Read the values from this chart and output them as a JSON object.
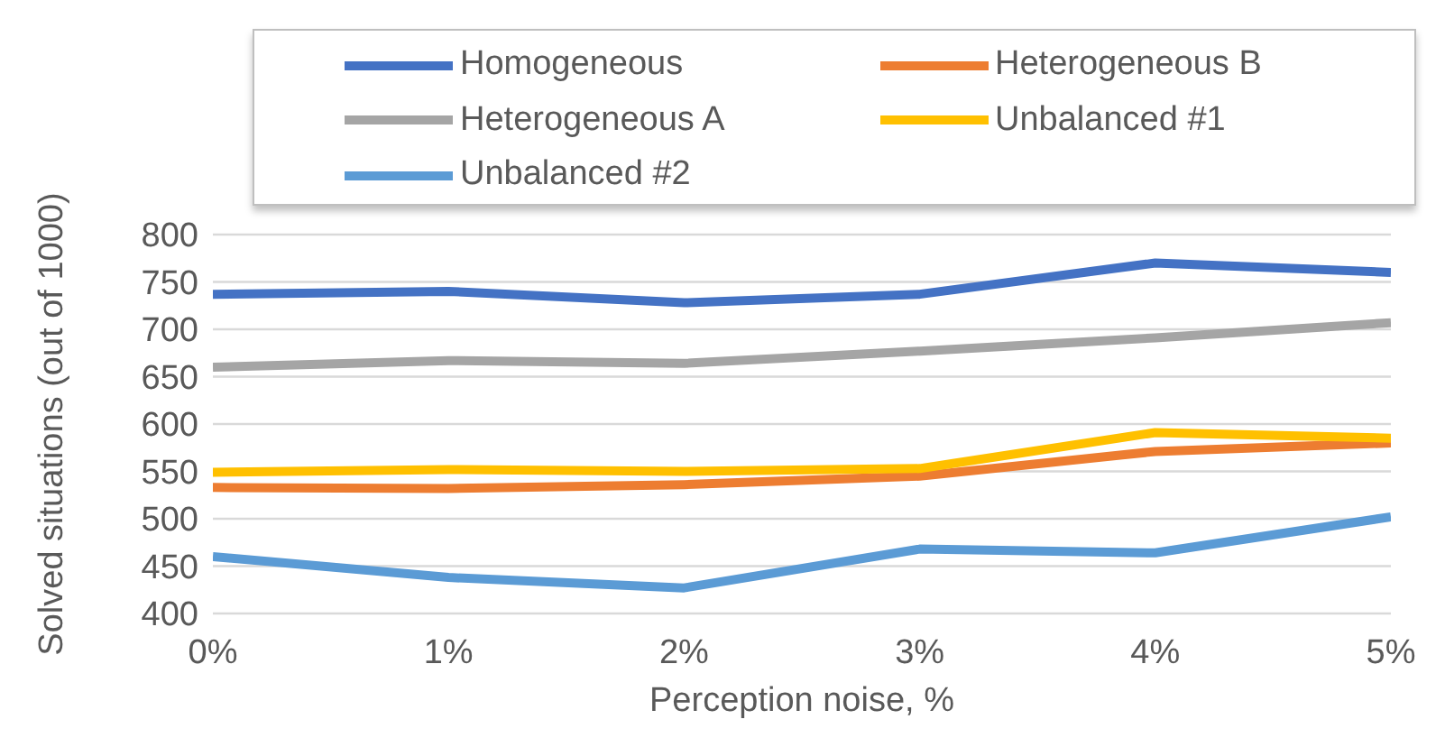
{
  "chart_data": {
    "type": "line",
    "xlabel": "Perception noise, %",
    "ylabel": "Solved situations (out of 1000)",
    "x": [
      0,
      1,
      2,
      3,
      4,
      5
    ],
    "xlim": [
      0,
      5
    ],
    "xticks": [
      {
        "value": 0,
        "label": "0%"
      },
      {
        "value": 1,
        "label": "1%"
      },
      {
        "value": 2,
        "label": "2%"
      },
      {
        "value": 3,
        "label": "3%"
      },
      {
        "value": 4,
        "label": "4%"
      },
      {
        "value": 5,
        "label": "5%"
      }
    ],
    "ylim": [
      400,
      800
    ],
    "yticks": [
      400,
      450,
      500,
      550,
      600,
      650,
      700,
      750,
      800
    ],
    "grid": "y",
    "legend": "top",
    "marker": "none",
    "line_style": "solid",
    "series": [
      {
        "name": "Homogeneous",
        "color": "#4472c4",
        "values": [
          737,
          740,
          728,
          737,
          770,
          760
        ]
      },
      {
        "name": "Heterogeneous B",
        "color": "#ed7d31",
        "values": [
          533,
          532,
          536,
          545,
          571,
          580
        ]
      },
      {
        "name": "Heterogeneous A",
        "color": "#a5a5a5",
        "values": [
          660,
          667,
          664,
          677,
          691,
          707
        ]
      },
      {
        "name": "Unbalanced #1",
        "color": "#ffc000",
        "values": [
          549,
          552,
          550,
          553,
          591,
          585
        ]
      },
      {
        "name": "Unbalanced #2",
        "color": "#5b9bd5",
        "values": [
          460,
          438,
          427,
          468,
          464,
          502
        ]
      }
    ]
  }
}
